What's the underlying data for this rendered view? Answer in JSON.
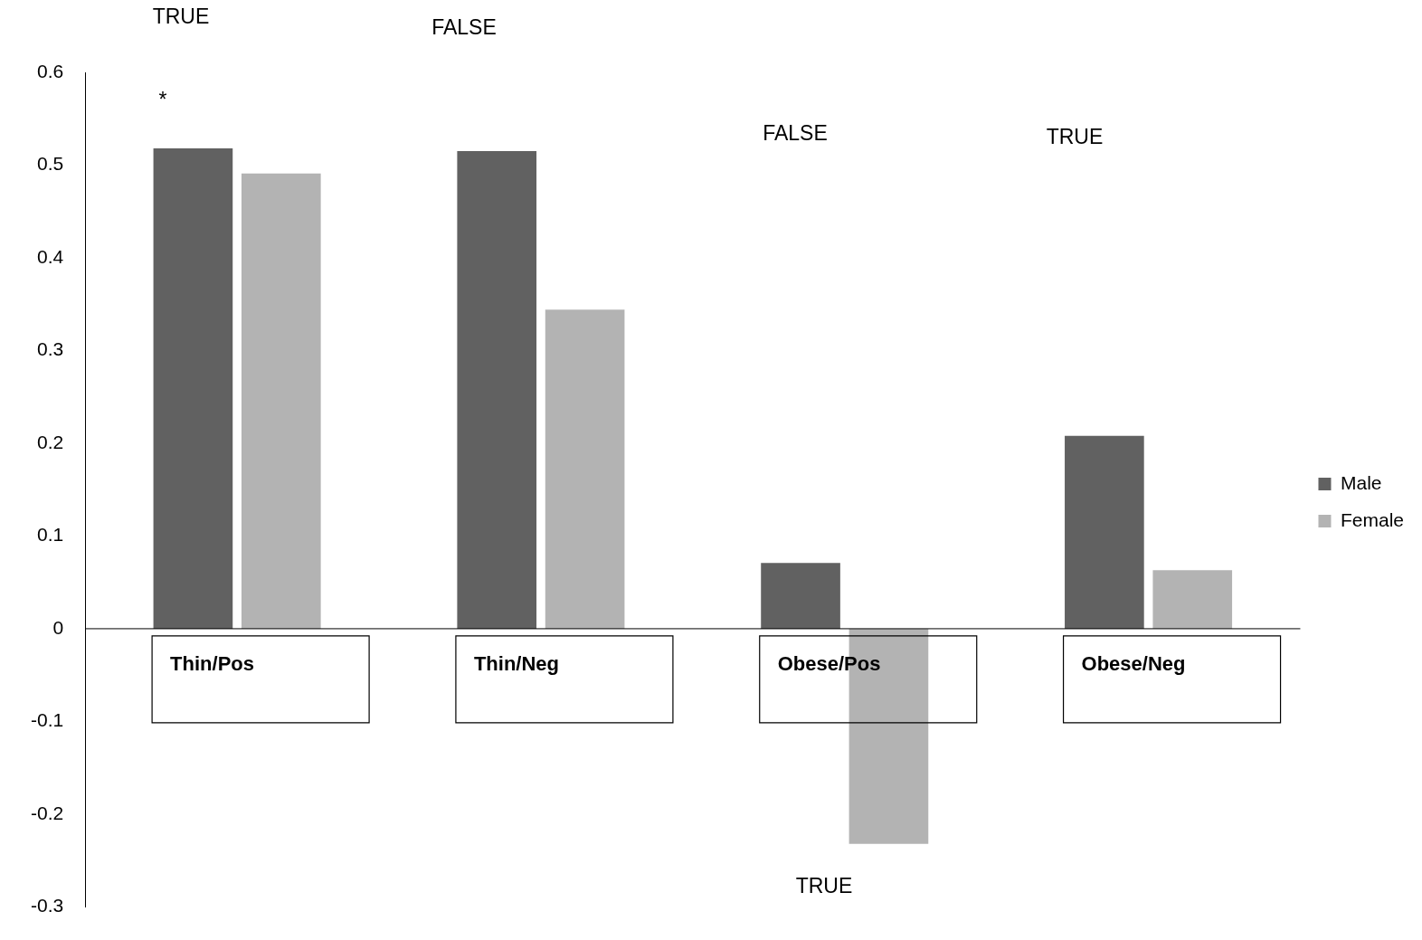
{
  "chart_data": {
    "type": "bar",
    "categories": [
      "Thin/Pos",
      "Thin/Neg",
      "Obese/Pos",
      "Obese/Neg"
    ],
    "series": [
      {
        "name": "Male",
        "color": "#616161",
        "values": [
          0.518,
          0.515,
          0.071,
          0.208
        ]
      },
      {
        "name": "Female",
        "color": "#b3b3b3",
        "values": [
          0.491,
          0.344,
          -0.232,
          0.063
        ]
      }
    ],
    "ylim": [
      -0.3,
      0.6
    ],
    "yticks": [
      -0.3,
      -0.2,
      -0.1,
      0,
      0.1,
      0.2,
      0.3,
      0.4,
      0.5,
      0.6
    ],
    "grid": false,
    "legend": "right",
    "annotations": [
      "TRUE",
      "FALSE",
      "FALSE",
      "TRUE",
      "TRUE",
      "*"
    ]
  }
}
